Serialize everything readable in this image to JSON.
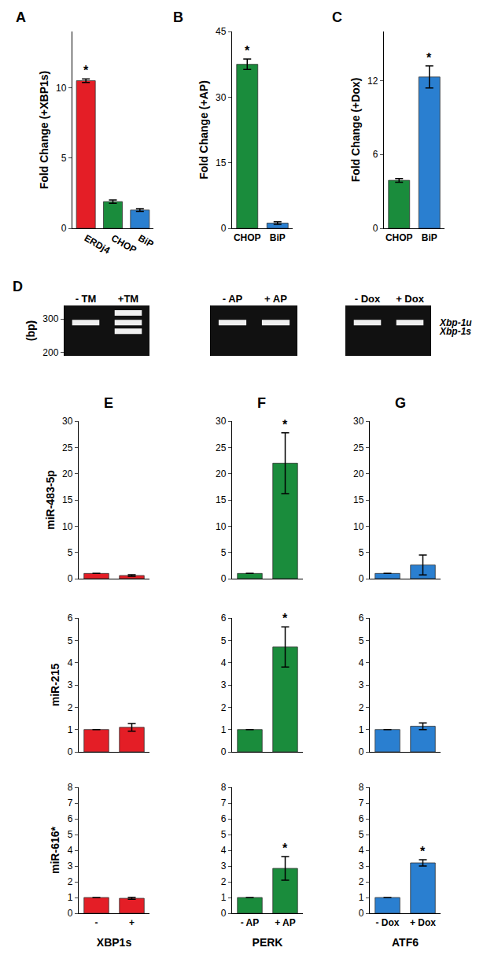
{
  "chart_data": [
    {
      "type": "bar",
      "title": "A",
      "categories": [
        "ERDj4",
        "CHOP",
        "BiP"
      ],
      "values": [
        10.5,
        1.9,
        1.3
      ],
      "errors": [
        0.12,
        0.12,
        0.1
      ],
      "colors": [
        "#e41e26",
        "#1a8c3c",
        "#2a7fd0"
      ],
      "y_label": "Fold Change (+XBP1s)",
      "ylim": [
        0,
        14
      ],
      "yticks": [
        0,
        5,
        10
      ],
      "annotations": [
        {
          "x": "ERDj4",
          "text": "*"
        }
      ]
    },
    {
      "type": "bar",
      "title": "B",
      "categories": [
        "CHOP",
        "BiP"
      ],
      "values": [
        37.5,
        1.2
      ],
      "errors": [
        1.2,
        0.3
      ],
      "colors": [
        "#1a8c3c",
        "#2a7fd0"
      ],
      "y_label": "Fold Change (+AP)",
      "ylim": [
        0,
        45
      ],
      "yticks": [
        0,
        15,
        30,
        45
      ],
      "annotations": [
        {
          "x": "CHOP",
          "text": "*"
        }
      ]
    },
    {
      "type": "bar",
      "title": "C",
      "categories": [
        "CHOP",
        "BiP"
      ],
      "values": [
        3.9,
        12.3
      ],
      "errors": [
        0.15,
        0.9
      ],
      "colors": [
        "#1a8c3c",
        "#2a7fd0"
      ],
      "y_label": "Fold Change (+Dox)",
      "ylim": [
        0,
        16
      ],
      "yticks": [
        0,
        6,
        12
      ],
      "annotations": [
        {
          "x": "BiP",
          "text": "*"
        }
      ]
    },
    {
      "type": "gel",
      "title": "D",
      "lanes": [
        "- TM",
        "+TM"
      ],
      "bands": [
        [
          289
        ],
        [
          318,
          289,
          263
        ]
      ],
      "y_label": "(bp)",
      "ylim": [
        190,
        340
      ],
      "yticks": [
        200,
        300
      ]
    },
    {
      "type": "gel",
      "lanes": [
        "- AP",
        "+ AP"
      ],
      "bands": [
        [
          289
        ],
        [
          289
        ]
      ],
      "ylim": [
        190,
        340
      ],
      "tick_labels": "x"
    },
    {
      "type": "gel",
      "lanes": [
        "- Dox",
        "+ Dox"
      ],
      "bands": [
        [
          289
        ],
        [
          289
        ]
      ],
      "ylim": [
        190,
        340
      ],
      "tick_labels": "x",
      "annotations": [
        {
          "y": 289,
          "text": "Xbp-1u"
        },
        {
          "y": 263,
          "text": "Xbp-1s"
        }
      ]
    },
    {
      "type": "bar",
      "title": "E",
      "categories": [
        "-",
        "+"
      ],
      "values": [
        1,
        0.6
      ],
      "errors": [
        null,
        0.15
      ],
      "color": "#e41e26",
      "y_label": "miR-483-5p",
      "ylim": [
        0,
        30
      ],
      "yticks": [
        0,
        5,
        10,
        15,
        20,
        25,
        30
      ],
      "tick_labels": "y"
    },
    {
      "type": "bar",
      "categories": [
        "-",
        "+"
      ],
      "values": [
        1,
        1.1
      ],
      "errors": [
        null,
        0.17
      ],
      "color": "#e41e26",
      "y_label": "miR-215",
      "ylim": [
        0,
        6
      ],
      "yticks": [
        0,
        1,
        2,
        3,
        4,
        5,
        6
      ],
      "tick_labels": "y"
    },
    {
      "type": "bar",
      "categories": [
        "-",
        "+"
      ],
      "values": [
        1,
        0.95
      ],
      "errors": [
        null,
        0.06
      ],
      "color": "#e41e26",
      "y_label": "miR-616*",
      "x_label": "XBP1s",
      "ylim": [
        0,
        8
      ],
      "yticks": [
        0,
        1,
        2,
        3,
        4,
        5,
        6,
        7,
        8
      ]
    },
    {
      "type": "bar",
      "title": "F",
      "categories": [
        "- AP",
        "+ AP"
      ],
      "values": [
        1,
        22
      ],
      "errors": [
        null,
        5.8
      ],
      "color": "#1a8c3c",
      "ylim": [
        0,
        30
      ],
      "yticks": [
        0,
        5,
        10,
        15,
        20,
        25,
        30
      ],
      "tick_labels": "y",
      "annotations": [
        {
          "x": "+ AP",
          "text": "*"
        }
      ]
    },
    {
      "type": "bar",
      "categories": [
        "- AP",
        "+ AP"
      ],
      "values": [
        1,
        4.7
      ],
      "errors": [
        null,
        0.9
      ],
      "color": "#1a8c3c",
      "ylim": [
        0,
        6
      ],
      "yticks": [
        0,
        1,
        2,
        3,
        4,
        5,
        6
      ],
      "tick_labels": "y",
      "annotations": [
        {
          "x": "+ AP",
          "text": "*"
        }
      ]
    },
    {
      "type": "bar",
      "categories": [
        "- AP",
        "+ AP"
      ],
      "values": [
        1,
        2.85
      ],
      "errors": [
        null,
        0.75
      ],
      "color": "#1a8c3c",
      "x_label": "PERK",
      "ylim": [
        0,
        8
      ],
      "yticks": [
        0,
        1,
        2,
        3,
        4,
        5,
        6,
        7,
        8
      ],
      "annotations": [
        {
          "x": "+ AP",
          "text": "*"
        }
      ]
    },
    {
      "type": "bar",
      "title": "G",
      "categories": [
        "- Dox",
        "+ Dox"
      ],
      "values": [
        1,
        2.6
      ],
      "errors": [
        null,
        1.9
      ],
      "color": "#2a7fd0",
      "ylim": [
        0,
        30
      ],
      "yticks": [
        0,
        5,
        10,
        15,
        20,
        25,
        30
      ],
      "tick_labels": "y"
    },
    {
      "type": "bar",
      "categories": [
        "- Dox",
        "+ Dox"
      ],
      "values": [
        1,
        1.15
      ],
      "errors": [
        null,
        0.15
      ],
      "color": "#2a7fd0",
      "ylim": [
        0,
        6
      ],
      "yticks": [
        0,
        1,
        2,
        3,
        4,
        5,
        6
      ],
      "tick_labels": "y"
    },
    {
      "type": "bar",
      "categories": [
        "- Dox",
        "+ Dox"
      ],
      "values": [
        1,
        3.2
      ],
      "errors": [
        null,
        0.2
      ],
      "color": "#2a7fd0",
      "x_label": "ATF6",
      "ylim": [
        0,
        8
      ],
      "yticks": [
        0,
        1,
        2,
        3,
        4,
        5,
        6,
        7,
        8
      ],
      "annotations": [
        {
          "x": "+ Dox",
          "text": "*"
        }
      ]
    }
  ]
}
